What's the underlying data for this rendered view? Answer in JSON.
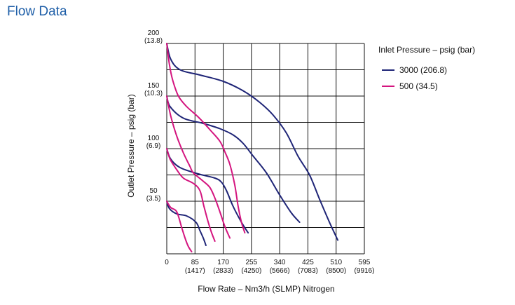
{
  "page_title": "Flow Data",
  "colors": {
    "series_3000": "#1f2577",
    "series_500": "#d4157f",
    "grid": "#111111",
    "title": "#1f5fa8"
  },
  "chart_data": {
    "type": "line",
    "title": "Flow Data",
    "xlabel": "Flow Rate  –  Nm3/h (SLMP) Nitrogen",
    "ylabel": "Outlet Pressure  –  psig (bar)",
    "xlim": [
      0,
      595
    ],
    "ylim": [
      0,
      200
    ],
    "grid": true,
    "legend_position": "right",
    "legend_title": "Inlet Pressure  –  psig (bar)",
    "x_ticks": [
      {
        "value": 0,
        "label": "0",
        "sub": ""
      },
      {
        "value": 85,
        "label": "85",
        "sub": "(1417)"
      },
      {
        "value": 170,
        "label": "170",
        "sub": "(2833)"
      },
      {
        "value": 255,
        "label": "255",
        "sub": "(4250)"
      },
      {
        "value": 340,
        "label": "340",
        "sub": "(5666)"
      },
      {
        "value": 425,
        "label": "425",
        "sub": "(7083)"
      },
      {
        "value": 510,
        "label": "510",
        "sub": "(8500)"
      },
      {
        "value": 595,
        "label": "595",
        "sub": "(9916)"
      }
    ],
    "y_ticks": [
      {
        "value": 50,
        "label": "50",
        "sub": "(3.5)"
      },
      {
        "value": 100,
        "label": "100",
        "sub": "(6.9)"
      },
      {
        "value": 150,
        "label": "150",
        "sub": "(10.3)"
      },
      {
        "value": 200,
        "label": "200",
        "sub": "(13.8)"
      }
    ],
    "series": [
      {
        "name": "3000 (206.8)",
        "color": "#1f2577",
        "curves": [
          [
            [
              0,
              200
            ],
            [
              12,
              185
            ],
            [
              40,
              175
            ],
            [
              100,
              170
            ],
            [
              170,
              164
            ],
            [
              230,
              155
            ],
            [
              280,
              144
            ],
            [
              320,
              132
            ],
            [
              360,
              115
            ],
            [
              395,
              93
            ],
            [
              430,
              75
            ],
            [
              460,
              52
            ],
            [
              490,
              30
            ],
            [
              515,
              13
            ]
          ],
          [
            [
              0,
              150
            ],
            [
              10,
              140
            ],
            [
              50,
              129
            ],
            [
              110,
              124
            ],
            [
              160,
              119
            ],
            [
              200,
              113
            ],
            [
              230,
              105
            ],
            [
              260,
              93
            ],
            [
              300,
              77
            ],
            [
              340,
              56
            ],
            [
              375,
              39
            ],
            [
              400,
              30
            ]
          ],
          [
            [
              0,
              100
            ],
            [
              12,
              90
            ],
            [
              40,
              82
            ],
            [
              95,
              76
            ],
            [
              145,
              72
            ],
            [
              165,
              68
            ],
            [
              180,
              60
            ],
            [
              200,
              45
            ],
            [
              225,
              30
            ],
            [
              245,
              20
            ]
          ],
          [
            [
              0,
              50
            ],
            [
              8,
              43
            ],
            [
              30,
              38
            ],
            [
              60,
              36
            ],
            [
              88,
              30
            ],
            [
              100,
              22
            ],
            [
              110,
              15
            ],
            [
              118,
              8
            ]
          ]
        ]
      },
      {
        "name": "500 (34.5)",
        "color": "#d4157f",
        "curves": [
          [
            [
              0,
              200
            ],
            [
              8,
              180
            ],
            [
              18,
              165
            ],
            [
              35,
              150
            ],
            [
              60,
              140
            ],
            [
              95,
              130
            ],
            [
              130,
              118
            ],
            [
              160,
              107
            ],
            [
              175,
              97
            ],
            [
              190,
              85
            ],
            [
              205,
              65
            ],
            [
              215,
              45
            ],
            [
              225,
              30
            ],
            [
              235,
              20
            ]
          ],
          [
            [
              0,
              150
            ],
            [
              12,
              131
            ],
            [
              30,
              112
            ],
            [
              50,
              96
            ],
            [
              70,
              83
            ],
            [
              80,
              77
            ],
            [
              110,
              69
            ],
            [
              130,
              63
            ],
            [
              145,
              53
            ],
            [
              160,
              40
            ],
            [
              175,
              26
            ],
            [
              190,
              15
            ]
          ],
          [
            [
              0,
              100
            ],
            [
              10,
              90
            ],
            [
              30,
              80
            ],
            [
              50,
              72
            ],
            [
              80,
              67
            ],
            [
              100,
              60
            ],
            [
              112,
              45
            ],
            [
              125,
              30
            ],
            [
              135,
              20
            ],
            [
              145,
              12
            ]
          ],
          [
            [
              0,
              50
            ],
            [
              12,
              44
            ],
            [
              30,
              40
            ],
            [
              45,
              25
            ],
            [
              55,
              15
            ],
            [
              65,
              7
            ],
            [
              75,
              2
            ]
          ]
        ]
      }
    ]
  }
}
